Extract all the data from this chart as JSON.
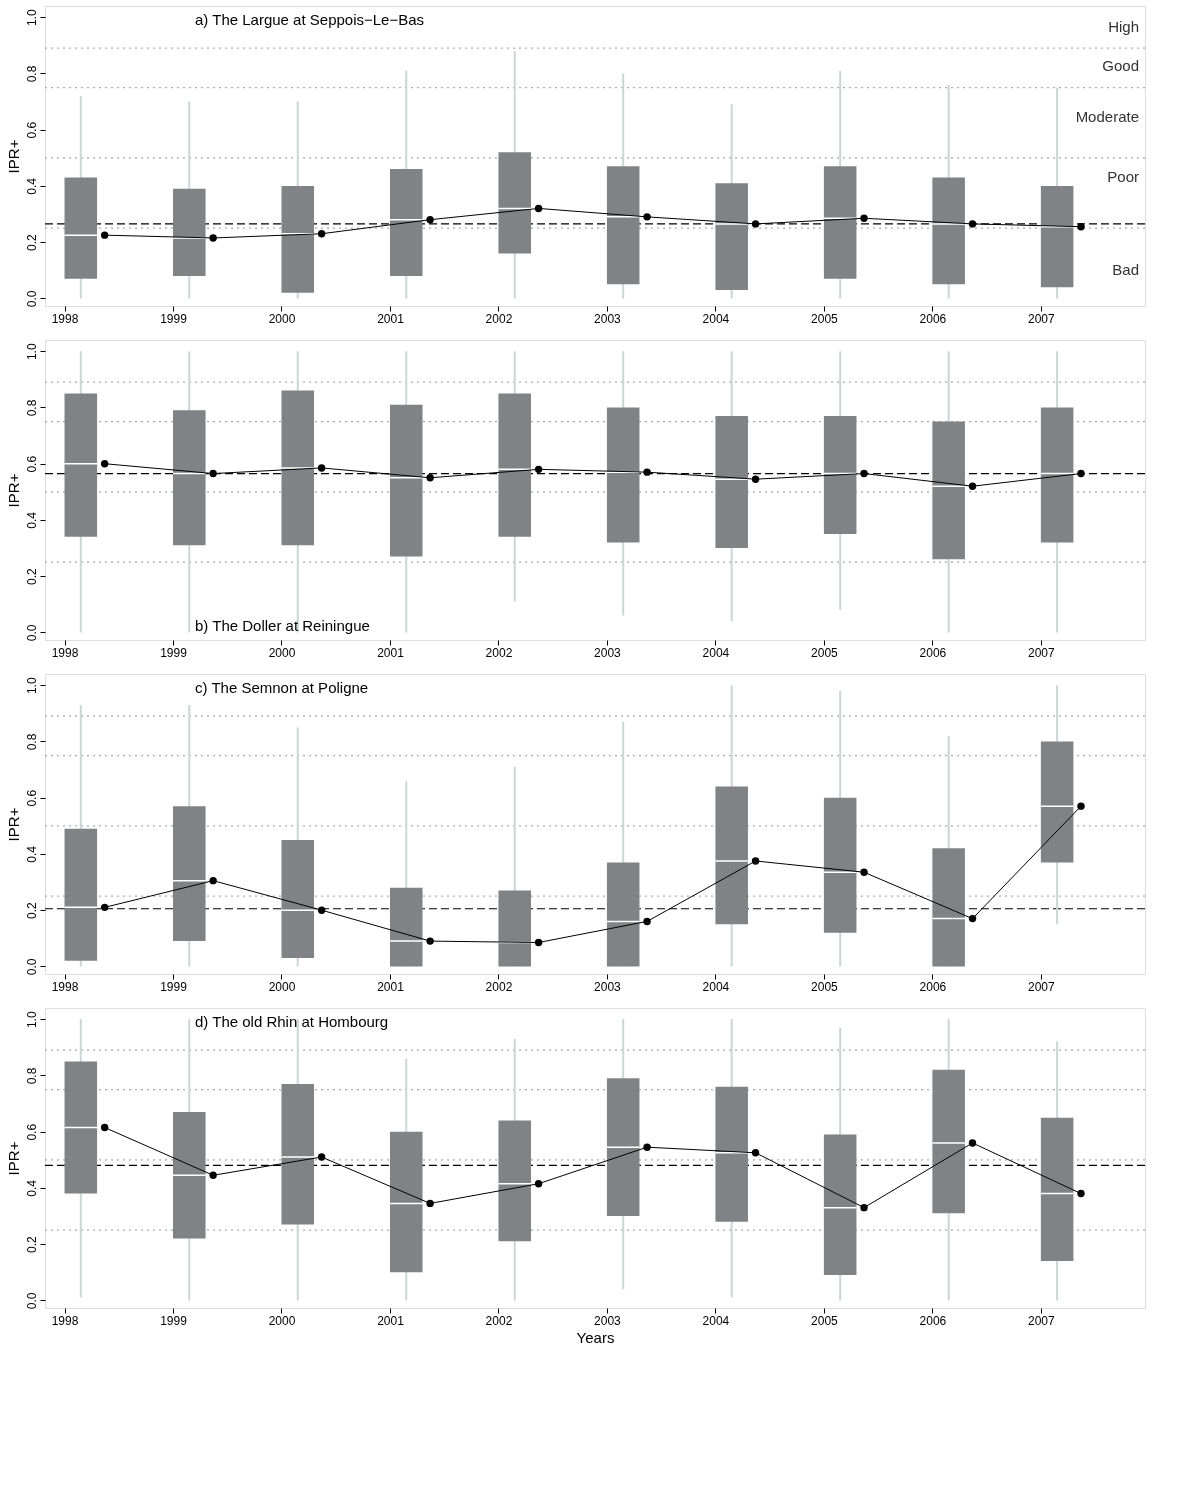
{
  "chart_data": [
    {
      "type": "box",
      "title": "a) The Largue at Seppois−Le−Bas",
      "ylabel": "IPR+",
      "xlim": [
        1997.82,
        2007.96
      ],
      "ylim": [
        -0.027,
        1.04
      ],
      "xticks": [
        1998,
        1999,
        2000,
        2001,
        2002,
        2003,
        2004,
        2005,
        2006,
        2007
      ],
      "yticks": [
        {
          "value": 0,
          "label": "0.0"
        },
        {
          "value": 0.2,
          "label": "0.2"
        },
        {
          "value": 0.4,
          "label": "0.4"
        },
        {
          "value": 0.6,
          "label": "0.6"
        },
        {
          "value": 0.8,
          "label": "0.8"
        },
        {
          "value": 1,
          "label": "1.0"
        }
      ],
      "grid": false,
      "x": [
        1998,
        1999,
        2000,
        2001,
        2002,
        2003,
        2004,
        2005,
        2006,
        2007
      ],
      "series": [
        {
          "type": "box",
          "color": "#808285",
          "boxes": [
            {
              "low": 0.0,
              "q1": 0.07,
              "median": 0.225,
              "q3": 0.43,
              "high": 0.72
            },
            {
              "low": 0.0,
              "q1": 0.08,
              "median": 0.215,
              "q3": 0.39,
              "high": 0.7
            },
            {
              "low": 0.0,
              "q1": 0.02,
              "median": 0.23,
              "q3": 0.4,
              "high": 0.7
            },
            {
              "low": 0.0,
              "q1": 0.08,
              "median": 0.28,
              "q3": 0.46,
              "high": 0.81
            },
            {
              "low": 0.0,
              "q1": 0.16,
              "median": 0.32,
              "q3": 0.52,
              "high": 0.88
            },
            {
              "low": 0.0,
              "q1": 0.05,
              "median": 0.29,
              "q3": 0.47,
              "high": 0.8
            },
            {
              "low": 0.0,
              "q1": 0.03,
              "median": 0.265,
              "q3": 0.41,
              "high": 0.69
            },
            {
              "low": 0.0,
              "q1": 0.07,
              "median": 0.285,
              "q3": 0.47,
              "high": 0.81
            },
            {
              "low": 0.0,
              "q1": 0.05,
              "median": 0.265,
              "q3": 0.43,
              "high": 0.76
            },
            {
              "low": 0.0,
              "q1": 0.04,
              "median": 0.255,
              "q3": 0.4,
              "high": 0.75
            }
          ]
        },
        {
          "type": "line",
          "color": "#000000",
          "marker": "circle",
          "x": [
            1998.37,
            1999.37,
            2000.37,
            2001.37,
            2002.37,
            2003.37,
            2004.37,
            2005.37,
            2006.37,
            2007.37
          ],
          "values": [
            0.225,
            0.215,
            0.23,
            0.28,
            0.32,
            0.29,
            0.265,
            0.285,
            0.265,
            0.255
          ]
        }
      ],
      "ref_lines": [
        {
          "axis": "y",
          "value": 0.265,
          "line_style": "dashed",
          "color": "#000000"
        },
        {
          "axis": "y",
          "value": 0.25,
          "line_style": "dotted",
          "color": "#a7a9ac"
        },
        {
          "axis": "y",
          "value": 0.5,
          "line_style": "dotted",
          "color": "#a7a9ac"
        },
        {
          "axis": "y",
          "value": 0.75,
          "line_style": "dotted",
          "color": "#a7a9ac"
        },
        {
          "axis": "y",
          "value": 0.89,
          "line_style": "dotted",
          "color": "#a7a9ac"
        }
      ],
      "annotations": [
        "High",
        "Good",
        "Moderate",
        "Poor",
        "Bad"
      ]
    },
    {
      "type": "box",
      "title": "b) The Doller at Reiningue",
      "ylabel": "IPR+",
      "xlim": [
        1997.82,
        2007.96
      ],
      "ylim": [
        -0.027,
        1.04
      ],
      "xticks": [
        1998,
        1999,
        2000,
        2001,
        2002,
        2003,
        2004,
        2005,
        2006,
        2007
      ],
      "yticks": [
        {
          "value": 0,
          "label": "0.0"
        },
        {
          "value": 0.2,
          "label": "0.2"
        },
        {
          "value": 0.4,
          "label": "0.4"
        },
        {
          "value": 0.6,
          "label": "0.6"
        },
        {
          "value": 0.8,
          "label": "0.8"
        },
        {
          "value": 1,
          "label": "1.0"
        }
      ],
      "grid": false,
      "x": [
        1998,
        1999,
        2000,
        2001,
        2002,
        2003,
        2004,
        2005,
        2006,
        2007
      ],
      "series": [
        {
          "type": "box",
          "color": "#808285",
          "boxes": [
            {
              "low": 0.0,
              "q1": 0.34,
              "median": 0.6,
              "q3": 0.85,
              "high": 1.0
            },
            {
              "low": 0.0,
              "q1": 0.31,
              "median": 0.565,
              "q3": 0.79,
              "high": 1.0
            },
            {
              "low": 0.0,
              "q1": 0.31,
              "median": 0.585,
              "q3": 0.86,
              "high": 1.0
            },
            {
              "low": 0.0,
              "q1": 0.27,
              "median": 0.55,
              "q3": 0.81,
              "high": 1.0
            },
            {
              "low": 0.11,
              "q1": 0.34,
              "median": 0.58,
              "q3": 0.85,
              "high": 1.0
            },
            {
              "low": 0.06,
              "q1": 0.32,
              "median": 0.57,
              "q3": 0.8,
              "high": 1.0
            },
            {
              "low": 0.04,
              "q1": 0.3,
              "median": 0.545,
              "q3": 0.77,
              "high": 1.0
            },
            {
              "low": 0.08,
              "q1": 0.35,
              "median": 0.565,
              "q3": 0.77,
              "high": 1.0
            },
            {
              "low": 0.0,
              "q1": 0.26,
              "median": 0.52,
              "q3": 0.75,
              "high": 1.0
            },
            {
              "low": 0.0,
              "q1": 0.32,
              "median": 0.565,
              "q3": 0.8,
              "high": 1.0
            }
          ]
        },
        {
          "type": "line",
          "color": "#000000",
          "marker": "circle",
          "x": [
            1998.37,
            1999.37,
            2000.37,
            2001.37,
            2002.37,
            2003.37,
            2004.37,
            2005.37,
            2006.37,
            2007.37
          ],
          "values": [
            0.6,
            0.565,
            0.585,
            0.55,
            0.58,
            0.57,
            0.545,
            0.565,
            0.52,
            0.565
          ]
        }
      ],
      "ref_lines": [
        {
          "axis": "y",
          "value": 0.565,
          "line_style": "dashed",
          "color": "#000000"
        },
        {
          "axis": "y",
          "value": 0.25,
          "line_style": "dotted",
          "color": "#a7a9ac"
        },
        {
          "axis": "y",
          "value": 0.5,
          "line_style": "dotted",
          "color": "#a7a9ac"
        },
        {
          "axis": "y",
          "value": 0.75,
          "line_style": "dotted",
          "color": "#a7a9ac"
        },
        {
          "axis": "y",
          "value": 0.89,
          "line_style": "dotted",
          "color": "#a7a9ac"
        }
      ]
    },
    {
      "type": "box",
      "title": "c) The Semnon at Poligne",
      "ylabel": "IPR+",
      "xlim": [
        1997.82,
        2007.96
      ],
      "ylim": [
        -0.027,
        1.04
      ],
      "xticks": [
        1998,
        1999,
        2000,
        2001,
        2002,
        2003,
        2004,
        2005,
        2006,
        2007
      ],
      "yticks": [
        {
          "value": 0,
          "label": "0.0"
        },
        {
          "value": 0.2,
          "label": "0.2"
        },
        {
          "value": 0.4,
          "label": "0.4"
        },
        {
          "value": 0.6,
          "label": "0.6"
        },
        {
          "value": 0.8,
          "label": "0.8"
        },
        {
          "value": 1,
          "label": "1.0"
        }
      ],
      "grid": false,
      "x": [
        1998,
        1999,
        2000,
        2001,
        2002,
        2003,
        2004,
        2005,
        2006,
        2007
      ],
      "series": [
        {
          "type": "box",
          "color": "#808285",
          "boxes": [
            {
              "low": 0.0,
              "q1": 0.02,
              "median": 0.21,
              "q3": 0.49,
              "high": 0.93
            },
            {
              "low": 0.0,
              "q1": 0.09,
              "median": 0.305,
              "q3": 0.57,
              "high": 0.93
            },
            {
              "low": 0.0,
              "q1": 0.03,
              "median": 0.2,
              "q3": 0.45,
              "high": 0.85
            },
            {
              "low": 0.0,
              "q1": 0.0,
              "median": 0.09,
              "q3": 0.28,
              "high": 0.66
            },
            {
              "low": 0.0,
              "q1": 0.0,
              "median": 0.085,
              "q3": 0.27,
              "high": 0.71
            },
            {
              "low": 0.0,
              "q1": 0.0,
              "median": 0.16,
              "q3": 0.37,
              "high": 0.87
            },
            {
              "low": 0.0,
              "q1": 0.15,
              "median": 0.375,
              "q3": 0.64,
              "high": 1.0
            },
            {
              "low": 0.0,
              "q1": 0.12,
              "median": 0.335,
              "q3": 0.6,
              "high": 0.98
            },
            {
              "low": 0.0,
              "q1": 0.0,
              "median": 0.17,
              "q3": 0.42,
              "high": 0.82
            },
            {
              "low": 0.15,
              "q1": 0.37,
              "median": 0.57,
              "q3": 0.8,
              "high": 1.0
            }
          ]
        },
        {
          "type": "line",
          "color": "#000000",
          "marker": "circle",
          "x": [
            1998.37,
            1999.37,
            2000.37,
            2001.37,
            2002.37,
            2003.37,
            2004.37,
            2005.37,
            2006.37,
            2007.37
          ],
          "values": [
            0.21,
            0.305,
            0.2,
            0.09,
            0.085,
            0.16,
            0.375,
            0.335,
            0.17,
            0.57
          ]
        }
      ],
      "ref_lines": [
        {
          "axis": "y",
          "value": 0.205,
          "line_style": "dashed",
          "color": "#000000"
        },
        {
          "axis": "y",
          "value": 0.25,
          "line_style": "dotted",
          "color": "#a7a9ac"
        },
        {
          "axis": "y",
          "value": 0.5,
          "line_style": "dotted",
          "color": "#a7a9ac"
        },
        {
          "axis": "y",
          "value": 0.75,
          "line_style": "dotted",
          "color": "#a7a9ac"
        },
        {
          "axis": "y",
          "value": 0.89,
          "line_style": "dotted",
          "color": "#a7a9ac"
        }
      ]
    },
    {
      "type": "box",
      "title": "d) The old Rhin at Hombourg",
      "xlabel": "Years",
      "ylabel": "IPR+",
      "xlim": [
        1997.82,
        2007.96
      ],
      "ylim": [
        -0.027,
        1.04
      ],
      "xticks": [
        1998,
        1999,
        2000,
        2001,
        2002,
        2003,
        2004,
        2005,
        2006,
        2007
      ],
      "yticks": [
        {
          "value": 0,
          "label": "0.0"
        },
        {
          "value": 0.2,
          "label": "0.2"
        },
        {
          "value": 0.4,
          "label": "0.4"
        },
        {
          "value": 0.6,
          "label": "0.6"
        },
        {
          "value": 0.8,
          "label": "0.8"
        },
        {
          "value": 1,
          "label": "1.0"
        }
      ],
      "grid": false,
      "x": [
        1998,
        1999,
        2000,
        2001,
        2002,
        2003,
        2004,
        2005,
        2006,
        2007
      ],
      "series": [
        {
          "type": "box",
          "color": "#808285",
          "boxes": [
            {
              "low": 0.01,
              "q1": 0.38,
              "median": 0.615,
              "q3": 0.85,
              "high": 1.0
            },
            {
              "low": 0.0,
              "q1": 0.22,
              "median": 0.445,
              "q3": 0.67,
              "high": 1.0
            },
            {
              "low": 0.0,
              "q1": 0.27,
              "median": 0.51,
              "q3": 0.77,
              "high": 1.0
            },
            {
              "low": 0.0,
              "q1": 0.1,
              "median": 0.345,
              "q3": 0.6,
              "high": 0.86
            },
            {
              "low": 0.0,
              "q1": 0.21,
              "median": 0.415,
              "q3": 0.64,
              "high": 0.93
            },
            {
              "low": 0.04,
              "q1": 0.3,
              "median": 0.545,
              "q3": 0.79,
              "high": 1.0
            },
            {
              "low": 0.01,
              "q1": 0.28,
              "median": 0.525,
              "q3": 0.76,
              "high": 1.0
            },
            {
              "low": 0.0,
              "q1": 0.09,
              "median": 0.33,
              "q3": 0.59,
              "high": 0.97
            },
            {
              "low": 0.0,
              "q1": 0.31,
              "median": 0.56,
              "q3": 0.82,
              "high": 1.0
            },
            {
              "low": 0.0,
              "q1": 0.14,
              "median": 0.38,
              "q3": 0.65,
              "high": 0.92
            }
          ]
        },
        {
          "type": "line",
          "color": "#000000",
          "marker": "circle",
          "x": [
            1998.37,
            1999.37,
            2000.37,
            2001.37,
            2002.37,
            2003.37,
            2004.37,
            2005.37,
            2006.37,
            2007.37
          ],
          "values": [
            0.615,
            0.445,
            0.51,
            0.345,
            0.415,
            0.545,
            0.525,
            0.33,
            0.56,
            0.38
          ]
        }
      ],
      "ref_lines": [
        {
          "axis": "y",
          "value": 0.48,
          "line_style": "dashed",
          "color": "#000000"
        },
        {
          "axis": "y",
          "value": 0.25,
          "line_style": "dotted",
          "color": "#a7a9ac"
        },
        {
          "axis": "y",
          "value": 0.5,
          "line_style": "dotted",
          "color": "#a7a9ac"
        },
        {
          "axis": "y",
          "value": 0.75,
          "line_style": "dotted",
          "color": "#a7a9ac"
        },
        {
          "axis": "y",
          "value": 0.89,
          "line_style": "dotted",
          "color": "#a7a9ac"
        }
      ]
    }
  ]
}
